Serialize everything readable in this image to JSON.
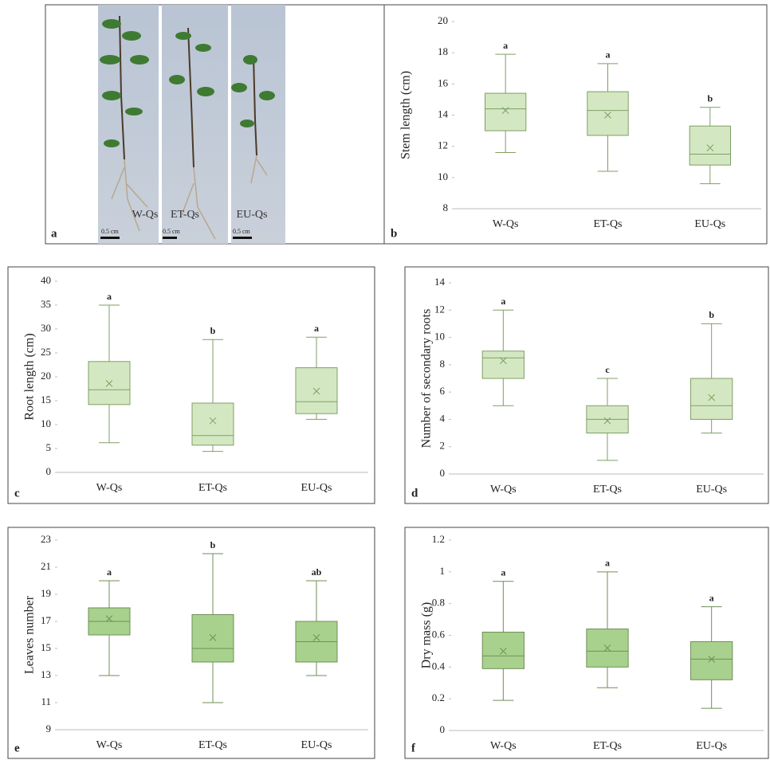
{
  "photo": {
    "panel_label": "a",
    "labels": [
      "W-Qs",
      "ET-Qs",
      "EU-Qs"
    ],
    "scale_label": "0.5 cm"
  },
  "chart_data": [
    {
      "type": "box",
      "panel_label": "b",
      "ylabel": "Stem length (cm)",
      "categories": [
        "W-Qs",
        "ET-Qs",
        "EU-Qs"
      ],
      "ylim": [
        8,
        20
      ],
      "yticks": [
        8,
        10,
        12,
        14,
        16,
        18,
        20
      ],
      "color": "#d3e8c2",
      "edge_color": "#7f9f63",
      "boxes": [
        {
          "min": 11.6,
          "q1": 13.0,
          "median": 14.4,
          "q3": 15.4,
          "max": 17.9,
          "mean": 14.3,
          "label": "a"
        },
        {
          "min": 10.4,
          "q1": 12.7,
          "median": 14.3,
          "q3": 15.5,
          "max": 17.3,
          "mean": 14.0,
          "label": "a"
        },
        {
          "min": 9.6,
          "q1": 10.8,
          "median": 11.5,
          "q3": 13.3,
          "max": 14.5,
          "mean": 11.9,
          "label": "b"
        }
      ]
    },
    {
      "type": "box",
      "panel_label": "c",
      "ylabel": "Root length (cm)",
      "categories": [
        "W-Qs",
        "ET-Qs",
        "EU-Qs"
      ],
      "ylim": [
        0,
        40
      ],
      "yticks": [
        0,
        5,
        10,
        15,
        20,
        25,
        30,
        35,
        40
      ],
      "color": "#d3e8c2",
      "edge_color": "#7f9f63",
      "boxes": [
        {
          "min": 6.2,
          "q1": 14.2,
          "median": 17.3,
          "q3": 23.2,
          "max": 35,
          "mean": 18.6,
          "label": "a"
        },
        {
          "min": 4.4,
          "q1": 5.7,
          "median": 7.7,
          "q3": 14.5,
          "max": 27.8,
          "mean": 10.8,
          "label": "b"
        },
        {
          "min": 11.1,
          "q1": 12.3,
          "median": 14.8,
          "q3": 21.9,
          "max": 28.3,
          "mean": 17.0,
          "label": "a"
        }
      ]
    },
    {
      "type": "box",
      "panel_label": "d",
      "ylabel": "Number of secondary roots",
      "categories": [
        "W-Qs",
        "ET-Qs",
        "EU-Qs"
      ],
      "ylim": [
        0,
        14
      ],
      "yticks": [
        0,
        2,
        4,
        6,
        8,
        10,
        12,
        14
      ],
      "color": "#d3e8c2",
      "edge_color": "#7f9f63",
      "boxes": [
        {
          "min": 5,
          "q1": 7,
          "median": 8.5,
          "q3": 9,
          "max": 12,
          "mean": 8.3,
          "label": "a"
        },
        {
          "min": 1,
          "q1": 3,
          "median": 4,
          "q3": 5,
          "max": 7,
          "mean": 3.9,
          "label": "c"
        },
        {
          "min": 3,
          "q1": 4,
          "median": 5,
          "q3": 7,
          "max": 11,
          "mean": 5.6,
          "label": "b"
        }
      ]
    },
    {
      "type": "box",
      "panel_label": "e",
      "ylabel": "Leaves number",
      "categories": [
        "W-Qs",
        "ET-Qs",
        "EU-Qs"
      ],
      "ylim": [
        9,
        23
      ],
      "yticks": [
        9,
        11,
        13,
        15,
        17,
        19,
        21,
        23
      ],
      "color": "#a9d18e",
      "edge_color": "#6f8f55",
      "boxes": [
        {
          "min": 13,
          "q1": 16,
          "median": 17,
          "q3": 18,
          "max": 20,
          "mean": 17.2,
          "label": "a"
        },
        {
          "min": 11,
          "q1": 14,
          "median": 15,
          "q3": 17.5,
          "max": 22,
          "mean": 15.8,
          "label": "b"
        },
        {
          "min": 13,
          "q1": 14,
          "median": 15.5,
          "q3": 17,
          "max": 20,
          "mean": 15.8,
          "label": "ab"
        }
      ]
    },
    {
      "type": "box",
      "panel_label": "f",
      "ylabel": "Dry mass (g)",
      "categories": [
        "W-Qs",
        "ET-Qs",
        "EU-Qs"
      ],
      "ylim": [
        0,
        1.2
      ],
      "yticks": [
        0,
        0.2,
        0.4,
        0.6,
        0.8,
        1,
        1.2
      ],
      "color": "#a9d18e",
      "edge_color": "#6f8f55",
      "boxes": [
        {
          "min": 0.19,
          "q1": 0.39,
          "median": 0.47,
          "q3": 0.62,
          "max": 0.94,
          "mean": 0.5,
          "label": "a"
        },
        {
          "min": 0.27,
          "q1": 0.4,
          "median": 0.5,
          "q3": 0.64,
          "max": 1.0,
          "mean": 0.52,
          "label": "a"
        },
        {
          "min": 0.14,
          "q1": 0.32,
          "median": 0.45,
          "q3": 0.56,
          "max": 0.78,
          "mean": 0.45,
          "label": "a"
        }
      ]
    }
  ]
}
